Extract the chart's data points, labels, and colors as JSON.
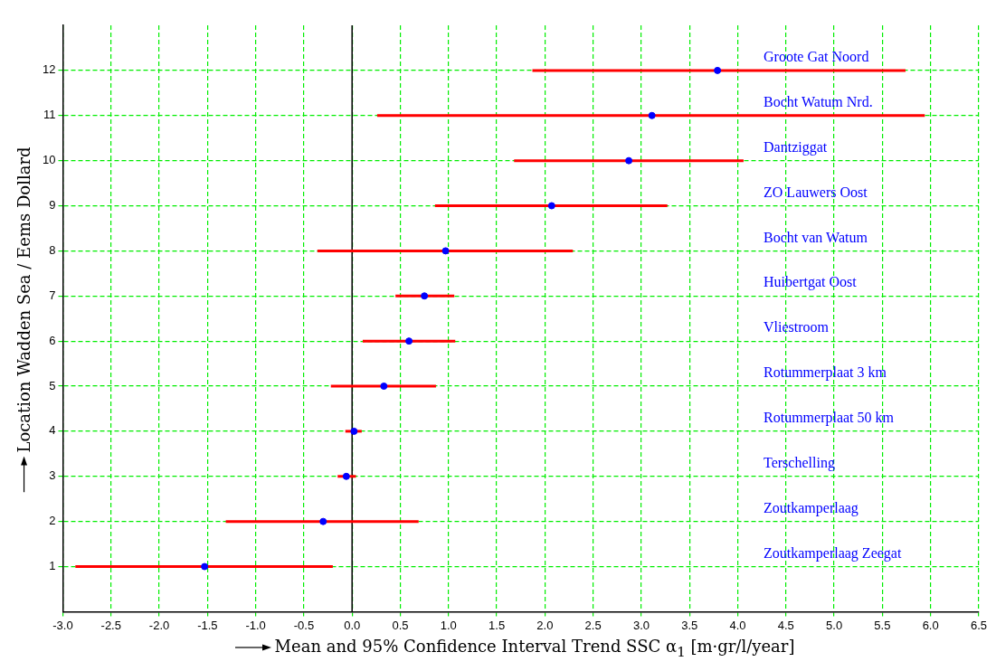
{
  "chart_data": {
    "type": "scatter",
    "xlabel": "Mean and 95% Confidence Interval Trend SSC α$_{1}$ [m·gr/l/year]",
    "ylabel": "Location Wadden Sea / Eems Dollard",
    "series": [
      {
        "color": "#0000ff",
        "x": [
          -1.53,
          -0.3,
          -0.06,
          0.02,
          0.33,
          0.59,
          0.75,
          0.97,
          2.07,
          2.87,
          3.11,
          3.79
        ],
        "values": [
          1,
          2,
          3,
          4,
          5,
          6,
          7,
          8,
          9,
          10,
          11,
          12
        ],
        "xerrors": [
          [
            -2.87,
            -0.2
          ],
          [
            -1.31,
            0.69
          ],
          [
            -0.15,
            0.04
          ],
          [
            -0.07,
            0.1
          ],
          [
            -0.22,
            0.87
          ],
          [
            0.11,
            1.07
          ],
          [
            0.45,
            1.06
          ],
          [
            -0.36,
            2.29
          ],
          [
            0.86,
            3.27
          ],
          [
            1.68,
            4.06
          ],
          [
            0.26,
            5.94
          ],
          [
            1.87,
            5.74
          ]
        ]
      }
    ],
    "xlim": [
      -3.0,
      6.5
    ],
    "xticks": [
      {
        "value": -3,
        "label": "-3.0"
      },
      -2.5,
      {
        "value": -2,
        "label": "-2.0"
      },
      -1.5,
      {
        "value": -1,
        "label": "-1.0"
      },
      -0.5,
      {
        "value": 0,
        "label": "0.0"
      },
      0.5,
      {
        "value": 1,
        "label": "1.0"
      },
      1.5,
      {
        "value": 2,
        "label": "2.0"
      },
      2.5,
      {
        "value": 3,
        "label": "3.0"
      },
      3.5,
      {
        "value": 4,
        "label": "4.0"
      },
      4.5,
      {
        "value": 5,
        "label": "5.0"
      },
      5.5,
      {
        "value": 6,
        "label": "6.0"
      },
      6.5
    ],
    "ylim": [
      0,
      13
    ],
    "yticks": [
      1,
      2,
      3,
      4,
      5,
      6,
      7,
      8,
      9,
      10,
      11,
      12
    ],
    "grid": true,
    "legend": false,
    "marker": "circle",
    "ref_lines": [
      {
        "axis": "x",
        "value": 0,
        "color": "#000000"
      }
    ],
    "annotations": [
      "Zoutkamperlaag Zeegat",
      "Zoutkamperlaag",
      "Terschelling",
      "Rotummerplaat 50 km",
      "Rotummerplaat 3 km",
      "Vliestroom",
      "Huibertgat Oost",
      "Bocht van Watum",
      "ZO Lauwers Oost",
      "Dantziggat",
      "Bocht Watum Nrd.",
      "Groote Gat Noord"
    ]
  }
}
